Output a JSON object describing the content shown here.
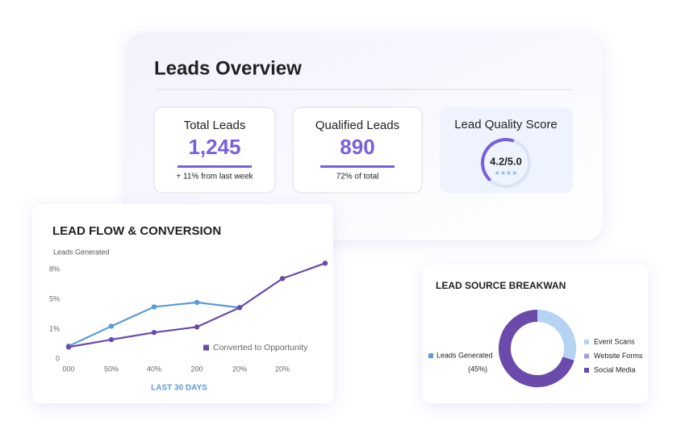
{
  "overview": {
    "title": "Leads Overview",
    "cards": [
      {
        "label": "Total Leads",
        "value": "1,245",
        "note": "+ 11% from last week"
      },
      {
        "label": "Qualified Leads",
        "value": "890",
        "note": "72% of total"
      }
    ],
    "score": {
      "label": "Lead Quality Score",
      "value_label": "4.2/5.0",
      "value": 4.2,
      "max": 5,
      "stars": "★★★★",
      "color": "#7b5ee0"
    }
  },
  "chart_data": [
    {
      "type": "line",
      "title": "LEAD FLOW & CONVERSION",
      "y_label": "Leads Generated",
      "x_label": "LAST 30 DAYS",
      "categories": [
        "000",
        "50%",
        "40%",
        "200",
        "20%",
        "20%",
        null
      ],
      "ylim": [
        0,
        9
      ],
      "yticks": [
        {
          "value": 0,
          "label": "0"
        },
        {
          "value": 1,
          "label": "1%"
        },
        {
          "value": 5,
          "label": "5%"
        },
        {
          "value": 8,
          "label": "8%"
        }
      ],
      "grid": false,
      "legend": "lower right",
      "series": [
        {
          "color": "#5a9bd8",
          "values": [
            0.43,
            1.4,
            4.0,
            4.6,
            3.9,
            null,
            null
          ]
        },
        {
          "name": "Converted to Opportunity",
          "color": "#6a4bab",
          "values": [
            0.4,
            0.65,
            0.89,
            1.3,
            3.9,
            7.1,
            8.65
          ]
        }
      ]
    },
    {
      "type": "donut",
      "title": "LEAD SOURCE BREAKWAN",
      "series": [
        {
          "name": "Event Scans",
          "color": "#b5d3f3",
          "value": 30
        },
        {
          "name": "Website Forms",
          "color": "#a99be0",
          "value": 0
        },
        {
          "name": "Social Media",
          "color": "#6a4bab",
          "value": 70
        }
      ],
      "callout": {
        "name": "Leads Generated",
        "value_label": "(45%)",
        "color": "#5a9bd8"
      }
    }
  ]
}
